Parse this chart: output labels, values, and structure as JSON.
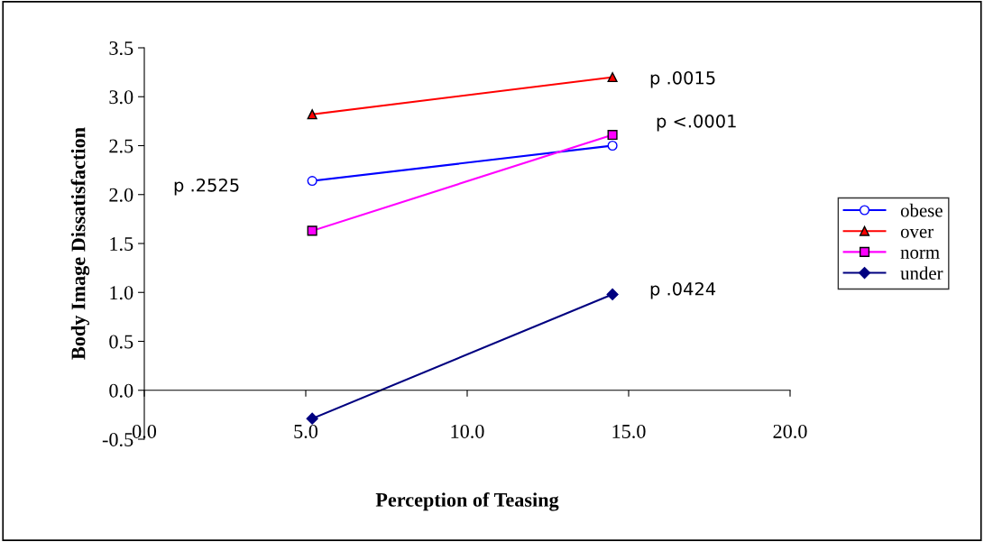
{
  "chart_data": {
    "type": "line",
    "xlabel": "Perception of Teasing",
    "ylabel": "Body Image Dissatisfaction",
    "xlim": [
      0,
      20
    ],
    "xticks": [
      {
        "value": 0,
        "label": "0.0"
      },
      {
        "value": 5,
        "label": "5.0"
      },
      {
        "value": 10,
        "label": "10.0"
      },
      {
        "value": 15,
        "label": "15.0"
      },
      {
        "value": 20,
        "label": "20.0"
      }
    ],
    "ylim": [
      -0.5,
      3.5
    ],
    "yticks": [
      {
        "value": -0.5,
        "label": "-0.5"
      },
      {
        "value": 0,
        "label": "0.0"
      },
      {
        "value": 0.5,
        "label": "0.5"
      },
      {
        "value": 1,
        "label": "1.0"
      },
      {
        "value": 1.5,
        "label": "1.5"
      },
      {
        "value": 2,
        "label": "2.0"
      },
      {
        "value": 2.5,
        "label": "2.5"
      },
      {
        "value": 3,
        "label": "3.0"
      },
      {
        "value": 3.5,
        "label": "3.5"
      }
    ],
    "x": [
      5.2,
      14.5
    ],
    "series": [
      {
        "name": "obese",
        "color": "#0000ff",
        "marker": "circle",
        "values": [
          2.14,
          2.5
        ]
      },
      {
        "name": "over",
        "color": "#ff0000",
        "marker": "triangle",
        "values": [
          2.82,
          3.2
        ]
      },
      {
        "name": "norm",
        "color": "#ff00ff",
        "marker": "square",
        "values": [
          1.63,
          2.61
        ]
      },
      {
        "name": "under",
        "color": "#000080",
        "marker": "diamond",
        "values": [
          -0.29,
          0.98
        ]
      }
    ],
    "annotations": [
      "p .0015",
      "p <.0001",
      "p .2525",
      "p .0424"
    ],
    "legend": "right",
    "grid": false,
    "line_style": "solid"
  }
}
